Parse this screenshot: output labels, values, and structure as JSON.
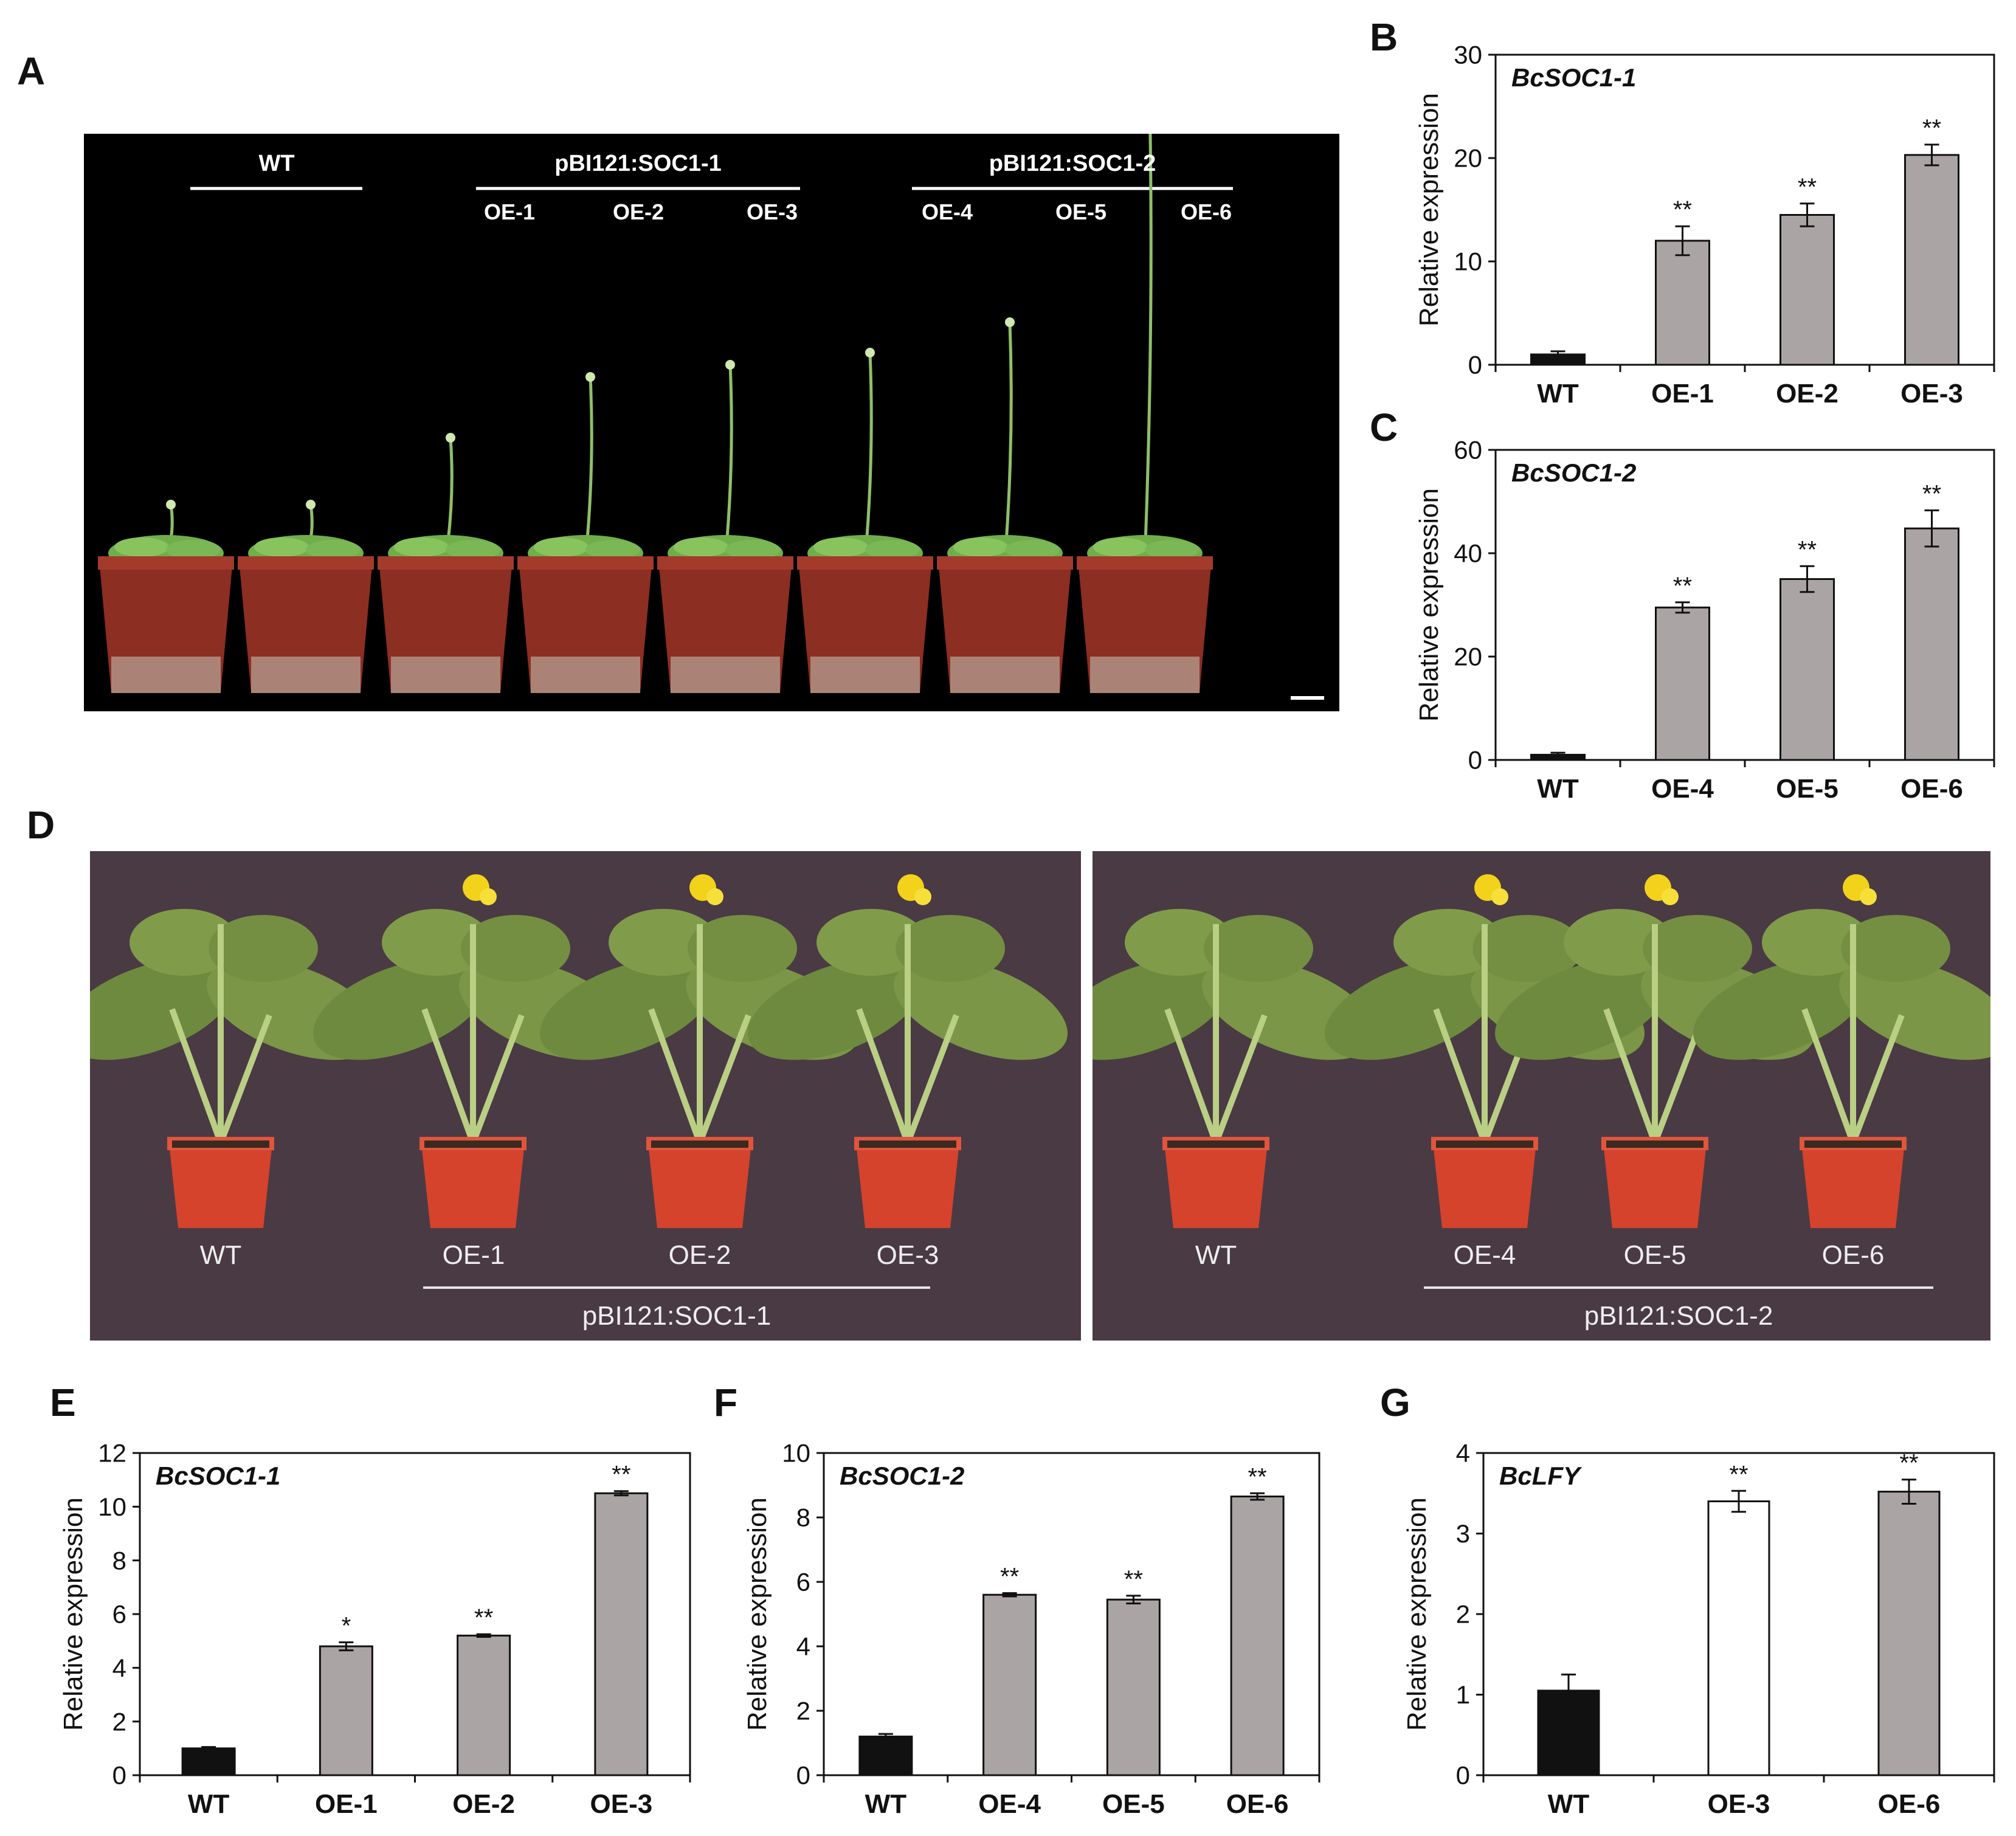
{
  "panel_labels": {
    "A": "A",
    "B": "B",
    "C": "C",
    "D": "D",
    "E": "E",
    "F": "F",
    "G": "G"
  },
  "photo_a": {
    "groups": [
      {
        "label": "WT",
        "lines": []
      },
      {
        "label": "pBI121:SOC1-1",
        "lines": [
          "OE-1",
          "OE-2",
          "OE-3"
        ]
      },
      {
        "label": "pBI121:SOC1-2",
        "lines": [
          "OE-4",
          "OE-5",
          "OE-6"
        ]
      }
    ]
  },
  "photo_d": {
    "left": {
      "pot_labels": [
        "WT",
        "OE-1",
        "OE-2",
        "OE-3"
      ],
      "construct": "pBI121:SOC1-1"
    },
    "right": {
      "pot_labels": [
        "WT",
        "OE-4",
        "OE-5",
        "OE-6"
      ],
      "construct": "pBI121:SOC1-2"
    }
  },
  "colors": {
    "wt_bar": "#111111",
    "oe_bar": "#aaa5a4",
    "white_bar": "#ffffff",
    "axis": "#111111"
  },
  "chart_data": [
    {
      "panel": "B",
      "type": "bar",
      "gene": "BcSOC1-1",
      "ylabel": "Relative expression",
      "ylim": [
        0,
        30
      ],
      "yticks": [
        0,
        10,
        20,
        30
      ],
      "categories": [
        "WT",
        "OE-1",
        "OE-2",
        "OE-3"
      ],
      "values": [
        1.0,
        12.0,
        14.5,
        20.3
      ],
      "errors": [
        0.3,
        1.4,
        1.1,
        1.0
      ],
      "significance": [
        "",
        "**",
        "**",
        "**"
      ],
      "bar_colors": [
        "wt",
        "oe",
        "oe",
        "oe"
      ]
    },
    {
      "panel": "C",
      "type": "bar",
      "gene": "BcSOC1-2",
      "ylabel": "Relative expression",
      "ylim": [
        0,
        60
      ],
      "yticks": [
        0,
        20,
        40,
        60
      ],
      "categories": [
        "WT",
        "OE-4",
        "OE-5",
        "OE-6"
      ],
      "values": [
        1.0,
        29.5,
        35.0,
        44.8
      ],
      "errors": [
        0.4,
        1.0,
        2.5,
        3.5
      ],
      "significance": [
        "",
        "**",
        "**",
        "**"
      ],
      "bar_colors": [
        "wt",
        "oe",
        "oe",
        "oe"
      ]
    },
    {
      "panel": "E",
      "type": "bar",
      "gene": "BcSOC1-1",
      "ylabel": "Relative expression",
      "ylim": [
        0,
        12
      ],
      "yticks": [
        0,
        2,
        4,
        6,
        8,
        10,
        12
      ],
      "categories": [
        "WT",
        "OE-1",
        "OE-2",
        "OE-3"
      ],
      "values": [
        1.0,
        4.8,
        5.2,
        10.5
      ],
      "errors": [
        0.05,
        0.15,
        0.05,
        0.08
      ],
      "significance": [
        "",
        "*",
        "**",
        "**"
      ],
      "bar_colors": [
        "wt",
        "oe",
        "oe",
        "oe"
      ]
    },
    {
      "panel": "F",
      "type": "bar",
      "gene": "BcSOC1-2",
      "ylabel": "Relative expression",
      "ylim": [
        0,
        10
      ],
      "yticks": [
        0,
        2,
        4,
        6,
        8,
        10
      ],
      "categories": [
        "WT",
        "OE-4",
        "OE-5",
        "OE-6"
      ],
      "values": [
        1.2,
        5.6,
        5.45,
        8.65
      ],
      "errors": [
        0.08,
        0.05,
        0.12,
        0.1
      ],
      "significance": [
        "",
        "**",
        "**",
        "**"
      ],
      "bar_colors": [
        "wt",
        "oe",
        "oe",
        "oe"
      ]
    },
    {
      "panel": "G",
      "type": "bar",
      "gene": "BcLFY",
      "ylabel": "Relative expression",
      "ylim": [
        0,
        4
      ],
      "yticks": [
        0,
        1,
        2,
        3,
        4
      ],
      "categories": [
        "WT",
        "OE-3",
        "OE-6"
      ],
      "values": [
        1.05,
        3.4,
        3.52
      ],
      "errors": [
        0.2,
        0.13,
        0.15
      ],
      "significance": [
        "",
        "**",
        "**"
      ],
      "bar_colors": [
        "wt",
        "white",
        "oe"
      ]
    }
  ]
}
